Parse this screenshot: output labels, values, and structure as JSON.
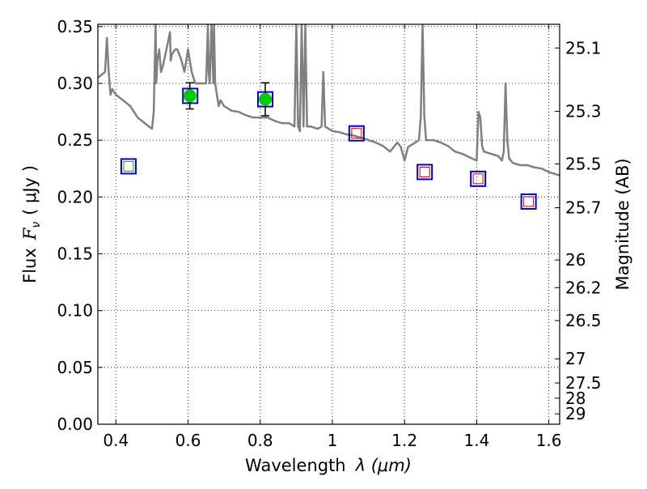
{
  "chart_data": {
    "type": "scatter",
    "title": "",
    "xlabel": "Wavelength",
    "xlabel_math": "λ (μm)",
    "ylabel": "Flux",
    "ylabel_math": "F",
    "ylabel_sub": "ν",
    "ylabel_unit": "( μJy )",
    "y2label": "Magnitude (AB)",
    "xlim": [
      0.35,
      1.63
    ],
    "ylim": [
      0.0,
      0.352
    ],
    "grid": true,
    "grid_style": "dotted",
    "x_ticks": [
      0.4,
      0.6,
      0.8,
      1.0,
      1.2,
      1.4,
      1.6
    ],
    "x_tick_labels": [
      "0.4",
      "0.6",
      "0.8",
      "1",
      "1.2",
      "1.4",
      "1.6"
    ],
    "y_ticks": [
      0.0,
      0.05,
      0.1,
      0.15,
      0.2,
      0.25,
      0.3,
      0.35
    ],
    "y_tick_labels": [
      "0.00",
      "0.05",
      "0.10",
      "0.15",
      "0.20",
      "0.25",
      "0.30",
      "0.35"
    ],
    "y2_ticks": [
      "25.1",
      "25.3",
      "25.5",
      "25.7",
      "26",
      "26.2",
      "26.5",
      "27",
      "27.5",
      "28",
      "29"
    ],
    "colors": {
      "spectrum": "#808080",
      "observed": "#00cc00",
      "errorbar": "#000000",
      "model_square": "#0000cc",
      "model_inner_red": "#cc0000",
      "model_inner_green": "#00aa00"
    },
    "series": [
      {
        "kind": "spectrum",
        "x": [
          0.35,
          0.37,
          0.375,
          0.38,
          0.385,
          0.39,
          0.4,
          0.42,
          0.44,
          0.46,
          0.48,
          0.5,
          0.505,
          0.51,
          0.512,
          0.515,
          0.52,
          0.525,
          0.53,
          0.54,
          0.55,
          0.552,
          0.555,
          0.56,
          0.565,
          0.57,
          0.58,
          0.59,
          0.6,
          0.61,
          0.62,
          0.63,
          0.64,
          0.65,
          0.655,
          0.657,
          0.66,
          0.665,
          0.67,
          0.672,
          0.675,
          0.68,
          0.685,
          0.69,
          0.7,
          0.72,
          0.74,
          0.76,
          0.78,
          0.8,
          0.82,
          0.84,
          0.86,
          0.88,
          0.895,
          0.9,
          0.905,
          0.91,
          0.915,
          0.92,
          0.925,
          0.93,
          0.94,
          0.96,
          0.97,
          0.975,
          0.98,
          0.99,
          1.0,
          1.02,
          1.04,
          1.06,
          1.08,
          1.1,
          1.12,
          1.14,
          1.16,
          1.18,
          1.19,
          1.2,
          1.21,
          1.22,
          1.24,
          1.245,
          1.25,
          1.255,
          1.26,
          1.28,
          1.3,
          1.32,
          1.34,
          1.36,
          1.38,
          1.4,
          1.405,
          1.41,
          1.415,
          1.42,
          1.44,
          1.46,
          1.47,
          1.475,
          1.48,
          1.485,
          1.49,
          1.5,
          1.52,
          1.54,
          1.56,
          1.58,
          1.6,
          1.63
        ],
        "y": [
          0.305,
          0.31,
          0.34,
          0.31,
          0.29,
          0.295,
          0.29,
          0.285,
          0.28,
          0.27,
          0.265,
          0.26,
          0.275,
          0.352,
          0.3,
          0.32,
          0.33,
          0.31,
          0.315,
          0.33,
          0.345,
          0.32,
          0.325,
          0.328,
          0.33,
          0.33,
          0.322,
          0.31,
          0.33,
          0.31,
          0.3,
          0.3,
          0.3,
          0.3,
          0.352,
          0.31,
          0.3,
          0.352,
          0.3,
          0.352,
          0.3,
          0.29,
          0.28,
          0.285,
          0.28,
          0.276,
          0.275,
          0.272,
          0.27,
          0.27,
          0.27,
          0.267,
          0.265,
          0.265,
          0.262,
          0.352,
          0.262,
          0.258,
          0.352,
          0.262,
          0.352,
          0.262,
          0.262,
          0.26,
          0.262,
          0.31,
          0.262,
          0.26,
          0.258,
          0.257,
          0.255,
          0.254,
          0.252,
          0.25,
          0.248,
          0.245,
          0.24,
          0.248,
          0.244,
          0.232,
          0.244,
          0.246,
          0.25,
          0.27,
          0.352,
          0.27,
          0.25,
          0.25,
          0.248,
          0.245,
          0.24,
          0.238,
          0.235,
          0.232,
          0.275,
          0.27,
          0.245,
          0.24,
          0.238,
          0.236,
          0.232,
          0.24,
          0.3,
          0.25,
          0.234,
          0.23,
          0.228,
          0.228,
          0.226,
          0.225,
          0.222,
          0.219
        ]
      },
      {
        "kind": "observed",
        "points": [
          {
            "x": 0.605,
            "y": 0.289,
            "err": 0.0115
          },
          {
            "x": 0.814,
            "y": 0.286,
            "err": 0.0145
          }
        ]
      },
      {
        "kind": "model",
        "points": [
          {
            "x": 0.435,
            "y": 0.227,
            "inner": "green"
          },
          {
            "x": 0.606,
            "y": 0.289,
            "inner": "none"
          },
          {
            "x": 0.814,
            "y": 0.286,
            "inner": "none"
          },
          {
            "x": 1.067,
            "y": 0.256,
            "inner": "red"
          },
          {
            "x": 1.256,
            "y": 0.222,
            "inner": "red"
          },
          {
            "x": 1.404,
            "y": 0.216,
            "inner": "red"
          },
          {
            "x": 1.544,
            "y": 0.196,
            "inner": "red"
          }
        ]
      }
    ]
  }
}
